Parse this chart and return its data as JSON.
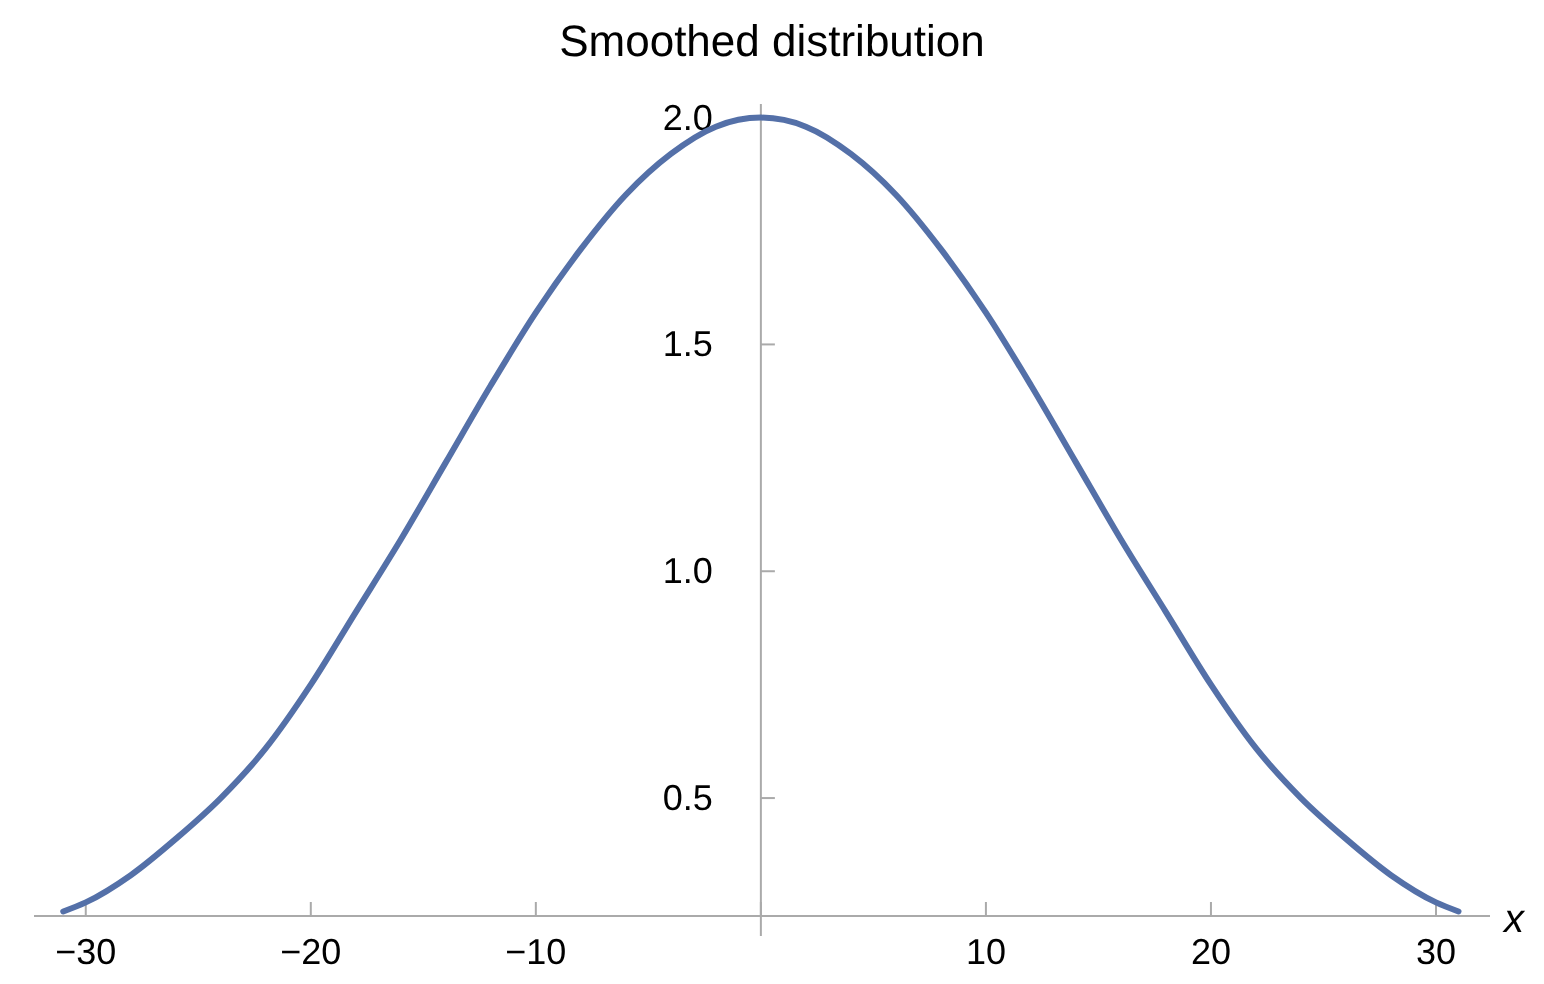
{
  "chart_data": {
    "type": "line",
    "title": "Smoothed distribution",
    "xlabel": "x",
    "x": [
      -31,
      -30,
      -28,
      -26,
      -24,
      -22,
      -20,
      -18,
      -16,
      -14,
      -12,
      -10,
      -8,
      -6,
      -4,
      -2,
      0,
      2,
      4,
      6,
      8,
      10,
      12,
      14,
      16,
      18,
      20,
      22,
      24,
      26,
      28,
      30,
      31
    ],
    "series": [
      {
        "color": "#5470a8",
        "values": [
          0.25,
          0.27,
          0.33,
          0.41,
          0.5,
          0.61,
          0.75,
          0.91,
          1.07,
          1.24,
          1.41,
          1.57,
          1.71,
          1.83,
          1.92,
          1.98,
          2.0,
          1.98,
          1.92,
          1.83,
          1.71,
          1.57,
          1.41,
          1.24,
          1.07,
          0.91,
          0.75,
          0.61,
          0.5,
          0.41,
          0.33,
          0.27,
          0.25
        ]
      }
    ],
    "xlim": [
      -32.3,
      32.4
    ],
    "ylim": [
      0.24,
      2.03
    ],
    "xticks": [
      -30,
      -20,
      -10,
      {
        "value": 0,
        "label": null
      },
      10,
      20,
      30
    ],
    "yticks": [
      {
        "value": 0.5,
        "label": "0.5"
      },
      {
        "value": 1,
        "label": "1.0"
      },
      {
        "value": 1.5,
        "label": "1.5"
      },
      {
        "value": 2,
        "label": "2.0"
      }
    ],
    "marker": "none",
    "line_style": "solid"
  }
}
